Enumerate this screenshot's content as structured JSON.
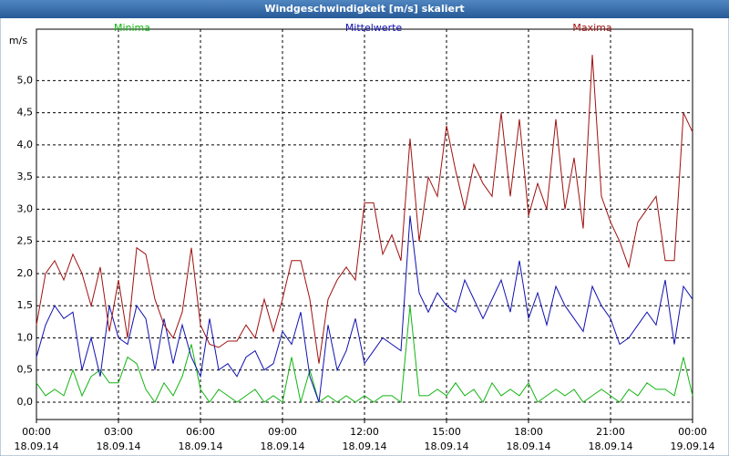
{
  "chart_data": {
    "type": "line",
    "title": "Windgeschwindigkeit [m/s] skaliert",
    "y_label": "m/s",
    "x": [
      0,
      20,
      40,
      60,
      80,
      100,
      120,
      140,
      160,
      180,
      200,
      220,
      240,
      260,
      280,
      300,
      320,
      340,
      360,
      380,
      400,
      420,
      440,
      460,
      480,
      500,
      520,
      540,
      560,
      580,
      600,
      620,
      640,
      660,
      680,
      700,
      720,
      740,
      760,
      780,
      800,
      820,
      840,
      860,
      880,
      900,
      920,
      940,
      960,
      980,
      1000,
      1020,
      1040,
      1060,
      1080,
      1100,
      1120,
      1140,
      1160,
      1180,
      1200,
      1220,
      1240,
      1260,
      1280,
      1300,
      1320,
      1340,
      1360,
      1380,
      1400,
      1420,
      1440
    ],
    "series": [
      {
        "name": "Minima",
        "color": "#12b512",
        "values": [
          0.3,
          0.1,
          0.2,
          0.1,
          0.5,
          0.1,
          0.4,
          0.5,
          0.3,
          0.3,
          0.7,
          0.6,
          0.2,
          0.0,
          0.3,
          0.1,
          0.4,
          0.9,
          0.2,
          0.0,
          0.2,
          0.1,
          0.0,
          0.1,
          0.2,
          0.0,
          0.1,
          0.0,
          0.7,
          0.0,
          0.5,
          0.0,
          0.1,
          0.0,
          0.1,
          0.0,
          0.1,
          0.0,
          0.1,
          0.1,
          0.0,
          1.5,
          0.1,
          0.1,
          0.2,
          0.1,
          0.3,
          0.1,
          0.2,
          0.0,
          0.3,
          0.1,
          0.2,
          0.1,
          0.3,
          0.0,
          0.1,
          0.2,
          0.1,
          0.2,
          0.0,
          0.1,
          0.2,
          0.1,
          0.0,
          0.2,
          0.1,
          0.3,
          0.2,
          0.2,
          0.1,
          0.7,
          0.1
        ]
      },
      {
        "name": "Mittelwerte",
        "color": "#1010b0",
        "values": [
          0.7,
          1.2,
          1.5,
          1.3,
          1.4,
          0.5,
          1.0,
          0.4,
          1.5,
          1.0,
          0.9,
          1.5,
          1.3,
          0.5,
          1.3,
          0.6,
          1.2,
          0.7,
          0.4,
          1.3,
          0.5,
          0.6,
          0.4,
          0.7,
          0.8,
          0.5,
          0.6,
          1.1,
          0.9,
          1.4,
          0.4,
          0.0,
          1.2,
          0.5,
          0.8,
          1.3,
          0.6,
          0.8,
          1.0,
          0.9,
          0.8,
          2.9,
          1.7,
          1.4,
          1.7,
          1.5,
          1.4,
          1.9,
          1.6,
          1.3,
          1.6,
          1.9,
          1.4,
          2.2,
          1.3,
          1.7,
          1.2,
          1.8,
          1.5,
          1.3,
          1.1,
          1.8,
          1.5,
          1.3,
          0.9,
          1.0,
          1.2,
          1.4,
          1.2,
          1.9,
          0.9,
          1.8,
          1.6
        ]
      },
      {
        "name": "Maxima",
        "color": "#a01010",
        "values": [
          1.2,
          2.0,
          2.2,
          1.9,
          2.3,
          2.0,
          1.5,
          2.1,
          1.1,
          1.9,
          1.0,
          2.4,
          2.3,
          1.6,
          1.2,
          1.0,
          1.4,
          2.4,
          1.2,
          0.9,
          0.85,
          0.95,
          0.95,
          1.2,
          1.0,
          1.6,
          1.1,
          1.6,
          2.2,
          2.2,
          1.6,
          0.6,
          1.6,
          1.9,
          2.1,
          1.9,
          3.1,
          3.1,
          2.3,
          2.6,
          2.2,
          4.1,
          2.5,
          3.5,
          3.2,
          4.3,
          3.6,
          3.0,
          3.7,
          3.4,
          3.2,
          4.5,
          3.2,
          4.4,
          2.9,
          3.4,
          3.0,
          4.4,
          3.0,
          3.8,
          2.7,
          5.4,
          3.2,
          2.8,
          2.5,
          2.1,
          2.8,
          3.0,
          3.2,
          2.2,
          2.2,
          4.5,
          4.2
        ]
      }
    ],
    "xlim": [
      0,
      1440
    ],
    "xticks": [
      {
        "value": 0,
        "label": "00:00"
      },
      {
        "value": 180,
        "label": "03:00"
      },
      {
        "value": 360,
        "label": "06:00"
      },
      {
        "value": 540,
        "label": "09:00"
      },
      {
        "value": 720,
        "label": "12:00"
      },
      {
        "value": 900,
        "label": "15:00"
      },
      {
        "value": 1080,
        "label": "18:00"
      },
      {
        "value": 1260,
        "label": "21:00"
      },
      {
        "value": 1440,
        "label": "00:00"
      }
    ],
    "xtick_dates": [
      "18.09.14",
      "18.09.14",
      "18.09.14",
      "18.09.14",
      "18.09.14",
      "18.09.14",
      "18.09.14",
      "18.09.14",
      "19.09.14"
    ],
    "ylim": [
      -0.27,
      5.8
    ],
    "yticks": [
      {
        "value": 0,
        "label": "0,0"
      },
      {
        "value": 0.5,
        "label": "0,5"
      },
      {
        "value": 1,
        "label": "1,0"
      },
      {
        "value": 1.5,
        "label": "1,5"
      },
      {
        "value": 2,
        "label": "2,0"
      },
      {
        "value": 2.5,
        "label": "2,5"
      },
      {
        "value": 3,
        "label": "3,0"
      },
      {
        "value": 3.5,
        "label": "3,5"
      },
      {
        "value": 4,
        "label": "4,0"
      },
      {
        "value": 4.5,
        "label": "4,5"
      },
      {
        "value": 5,
        "label": "5,0"
      }
    ],
    "grid": true
  }
}
